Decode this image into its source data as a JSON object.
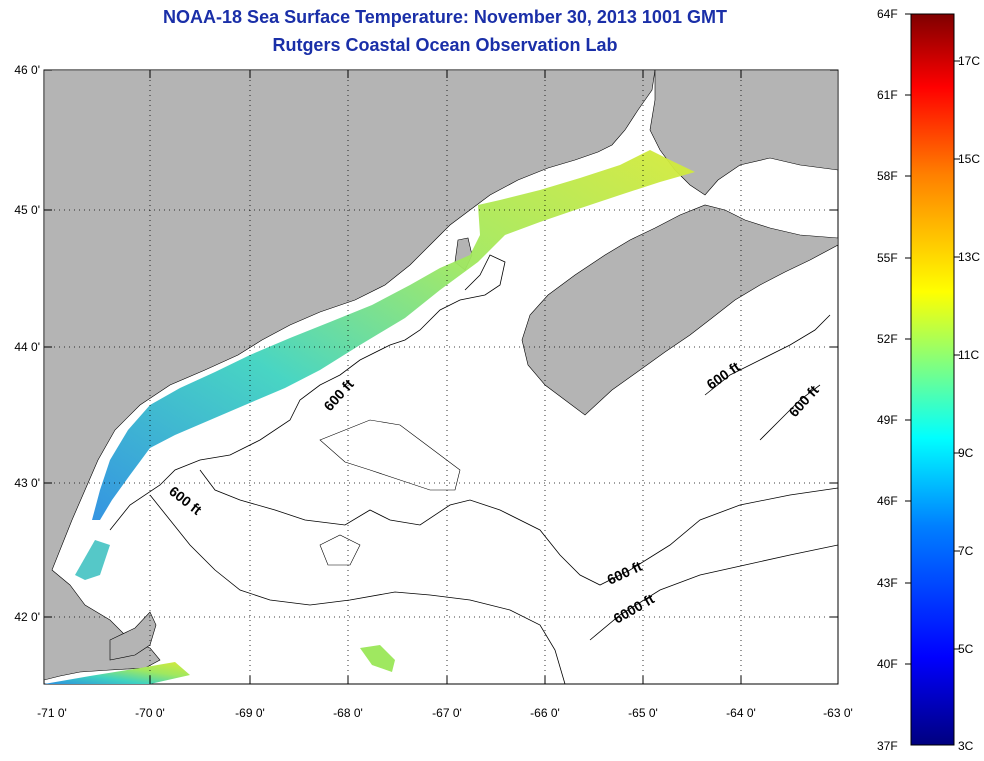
{
  "title": "NOAA-18 Sea Surface Temperature:  November 30, 2013 1001 GMT",
  "subtitle": "Rutgers Coastal Ocean Observation Lab",
  "lat_labels": [
    "46 0'",
    "45 0'",
    "44 0'",
    "43 0'",
    "42 0'"
  ],
  "lon_labels": [
    "-71 0'",
    "-70 0'",
    "-69 0'",
    "-68 0'",
    "-67 0'",
    "-66 0'",
    "-65 0'",
    "-64 0'",
    "-63 0'"
  ],
  "contour_labels": [
    {
      "text": "600 ft"
    },
    {
      "text": "600 ft"
    },
    {
      "text": "600 ft"
    },
    {
      "text": "600 ft"
    },
    {
      "text": "600 ft"
    },
    {
      "text": "6000 ft"
    }
  ],
  "colorbar": {
    "fahrenheit": [
      "64F",
      "61F",
      "58F",
      "55F",
      "52F",
      "49F",
      "46F",
      "43F",
      "40F",
      "37F"
    ],
    "celsius": [
      "17C",
      "15C",
      "13C",
      "11C",
      "9C",
      "7C",
      "5C",
      "3C"
    ]
  },
  "colors": {
    "land": "#b4b4b4",
    "title": "#1a2fa8",
    "sst_warm": "#c8e640",
    "sst_mid": "#55dd99",
    "sst_cool": "#2a8fe0"
  }
}
